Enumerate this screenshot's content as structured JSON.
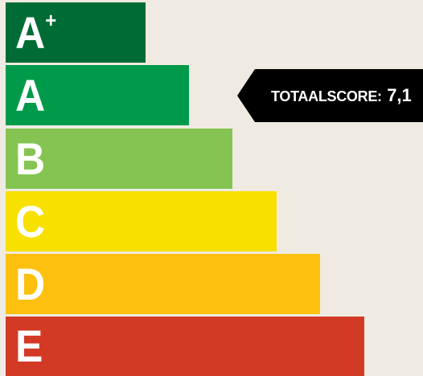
{
  "energy_label": {
    "classes": [
      {
        "label": "A",
        "superscript": "+",
        "color": "#006c35"
      },
      {
        "label": "A",
        "superscript": "",
        "color": "#009a4a"
      },
      {
        "label": "B",
        "superscript": "",
        "color": "#85c452"
      },
      {
        "label": "C",
        "superscript": "",
        "color": "#f8e000"
      },
      {
        "label": "D",
        "superscript": "",
        "color": "#fdc00f"
      },
      {
        "label": "E",
        "superscript": "",
        "color": "#d23a26"
      }
    ],
    "score": {
      "label": "TOTAALSCORE:",
      "value": "7,1",
      "pointer_class": "A",
      "color": "#000000"
    },
    "background": "#efebe2"
  }
}
